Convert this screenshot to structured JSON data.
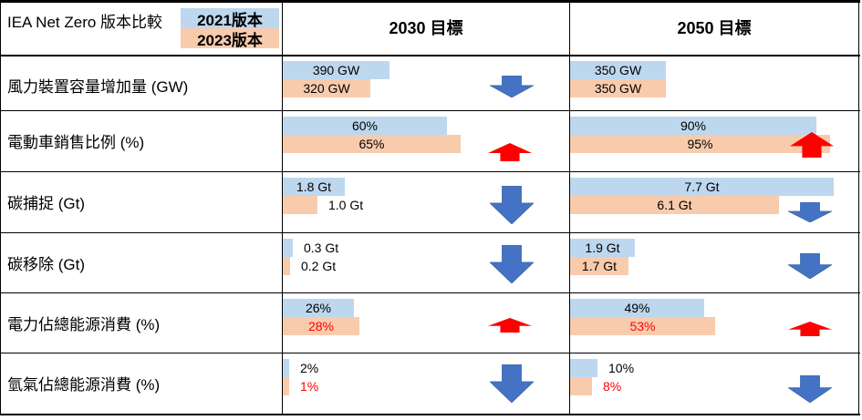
{
  "header": {
    "title": "IEA Net Zero 版本比較",
    "legend_2021": "2021版本",
    "legend_2023": "2023版本",
    "col_2030": "2030 目標",
    "col_2050": "2050 目標"
  },
  "colors": {
    "bar_2021": "#bdd7ee",
    "bar_2023": "#f8cbad",
    "arrow_up": "#ff0000",
    "arrow_down": "#4472c4",
    "value_red": "#ff0000"
  },
  "chart_data": {
    "type": "bar",
    "title": "IEA Net Zero 版本比較",
    "series": [
      {
        "name": "2021版本"
      },
      {
        "name": "2023版本"
      }
    ],
    "rows": [
      {
        "label": "風力裝置容量增加量 (GW)",
        "y2030": {
          "v2021": "390 GW",
          "v2023": "320 GW",
          "n2021": 390,
          "n2023": 320,
          "max": 1000,
          "arrow": "down",
          "red2023": false
        },
        "y2050": {
          "v2021": "350 GW",
          "v2023": "350 GW",
          "n2021": 350,
          "n2023": 350,
          "max": 1000,
          "arrow": "none",
          "red2023": false
        }
      },
      {
        "label": "電動車銷售比例 (%)",
        "y2030": {
          "v2021": "60%",
          "v2023": "65%",
          "n2021": 60,
          "n2023": 65,
          "max": 100,
          "arrow": "up",
          "red2023": false
        },
        "y2050": {
          "v2021": "90%",
          "v2023": "95%",
          "n2021": 90,
          "n2023": 95,
          "max": 100,
          "arrow": "up",
          "red2023": false
        }
      },
      {
        "label": "碳捕捉 (Gt)",
        "y2030": {
          "v2021": "1.8 Gt",
          "v2023": "1.0 Gt",
          "n2021": 1.8,
          "n2023": 1.0,
          "max": 8,
          "arrow": "down",
          "red2023": false
        },
        "y2050": {
          "v2021": "7.7 Gt",
          "v2023": "6.1 Gt",
          "n2021": 7.7,
          "n2023": 6.1,
          "max": 8,
          "arrow": "down",
          "red2023": false
        }
      },
      {
        "label": "碳移除 (Gt)",
        "y2030": {
          "v2021": "0.3 Gt",
          "v2023": "0.2 Gt",
          "n2021": 0.3,
          "n2023": 0.2,
          "max": 8,
          "arrow": "down",
          "red2023": false
        },
        "y2050": {
          "v2021": "1.9 Gt",
          "v2023": "1.7 Gt",
          "n2021": 1.9,
          "n2023": 1.7,
          "max": 8,
          "arrow": "down",
          "red2023": false
        }
      },
      {
        "label": "電力佔總能源消費 (%)",
        "y2030": {
          "v2021": "26%",
          "v2023": "28%",
          "n2021": 26,
          "n2023": 28,
          "max": 100,
          "arrow": "up",
          "red2023": true
        },
        "y2050": {
          "v2021": "49%",
          "v2023": "53%",
          "n2021": 49,
          "n2023": 53,
          "max": 100,
          "arrow": "up",
          "red2023": true
        }
      },
      {
        "label": "氫氣佔總能源消費 (%)",
        "y2030": {
          "v2021": "2%",
          "v2023": "1%",
          "n2021": 2,
          "n2023": 1,
          "max": 100,
          "arrow": "down",
          "red2023": true
        },
        "y2050": {
          "v2021": "10%",
          "v2023": "8%",
          "n2021": 10,
          "n2023": 8,
          "max": 100,
          "arrow": "down",
          "red2023": true
        }
      }
    ]
  }
}
